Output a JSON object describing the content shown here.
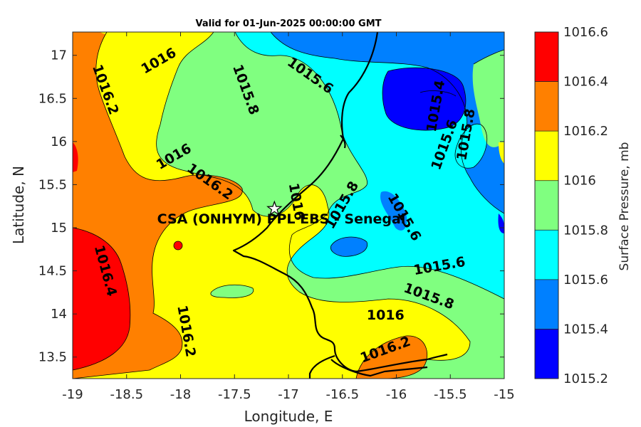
{
  "title": "Valid for 01-Jun-2025 00:00:00 GMT",
  "x_axis": {
    "label": "Longitude, E",
    "ticks": [
      -19,
      -18.5,
      -18,
      -17.5,
      -17,
      -16.5,
      -16,
      -15.5,
      -15
    ],
    "tick_labels": [
      "-19",
      "-18.5",
      "-18",
      "-17.5",
      "-17",
      "-16.5",
      "-16",
      "-15.5",
      "-15"
    ]
  },
  "y_axis": {
    "label": "Latitude, N",
    "ticks": [
      13.5,
      14,
      14.5,
      15,
      15.5,
      16,
      16.5,
      17
    ],
    "tick_labels": [
      "13.5",
      "14",
      "14.5",
      "15",
      "15.5",
      "16",
      "16.5",
      "17"
    ]
  },
  "colorbar": {
    "label": "Surface Pressure, mb",
    "levels": [
      1015.2,
      1015.4,
      1015.6,
      1015.8,
      1016,
      1016.2,
      1016.4,
      1016.6
    ],
    "tick_labels": [
      "1015.2",
      "1015.4",
      "1015.6",
      "1015.8",
      "1016",
      "1016.2",
      "1016.4",
      "1016.6"
    ],
    "colors": [
      "#0000ff",
      "#0080ff",
      "#00ffff",
      "#80ff80",
      "#ffff00",
      "#ff8000",
      "#ff0000",
      "#800000"
    ]
  },
  "station": {
    "name": "CSA (ONHYM) PPL EBS - Senegal",
    "lon": -17.13,
    "lat": 15.22,
    "marker-icon": "star-icon"
  },
  "contour_labels": [
    {
      "text": "1016",
      "lon": -18.2,
      "lat": 16.93
    },
    {
      "text": "1016.2",
      "lon": -18.7,
      "lat": 16.6
    },
    {
      "text": "1015.8",
      "lon": -17.4,
      "lat": 16.6
    },
    {
      "text": "1015.6",
      "lon": -16.8,
      "lat": 16.76
    },
    {
      "text": "1015.4",
      "lon": -15.63,
      "lat": 16.41
    },
    {
      "text": "1015.6",
      "lon": -15.55,
      "lat": 15.96
    },
    {
      "text": "1015.8",
      "lon": -15.35,
      "lat": 16.08
    },
    {
      "text": "1016",
      "lon": -18.06,
      "lat": 15.82
    },
    {
      "text": "1016.2",
      "lon": -17.73,
      "lat": 15.53
    },
    {
      "text": "1016",
      "lon": -16.93,
      "lat": 15.3
    },
    {
      "text": "1015.8",
      "lon": -16.5,
      "lat": 15.26
    },
    {
      "text": "1015.6",
      "lon": -15.93,
      "lat": 15.12
    },
    {
      "text": "1016.4",
      "lon": -18.7,
      "lat": 14.5
    },
    {
      "text": "1016.2",
      "lon": -17.95,
      "lat": 13.8
    },
    {
      "text": "1015.6",
      "lon": -15.6,
      "lat": 14.55
    },
    {
      "text": "1015.8",
      "lon": -15.7,
      "lat": 14.2
    },
    {
      "text": "1016",
      "lon": -16.1,
      "lat": 13.98
    },
    {
      "text": "1016.2",
      "lon": -16.1,
      "lat": 13.58
    }
  ]
}
